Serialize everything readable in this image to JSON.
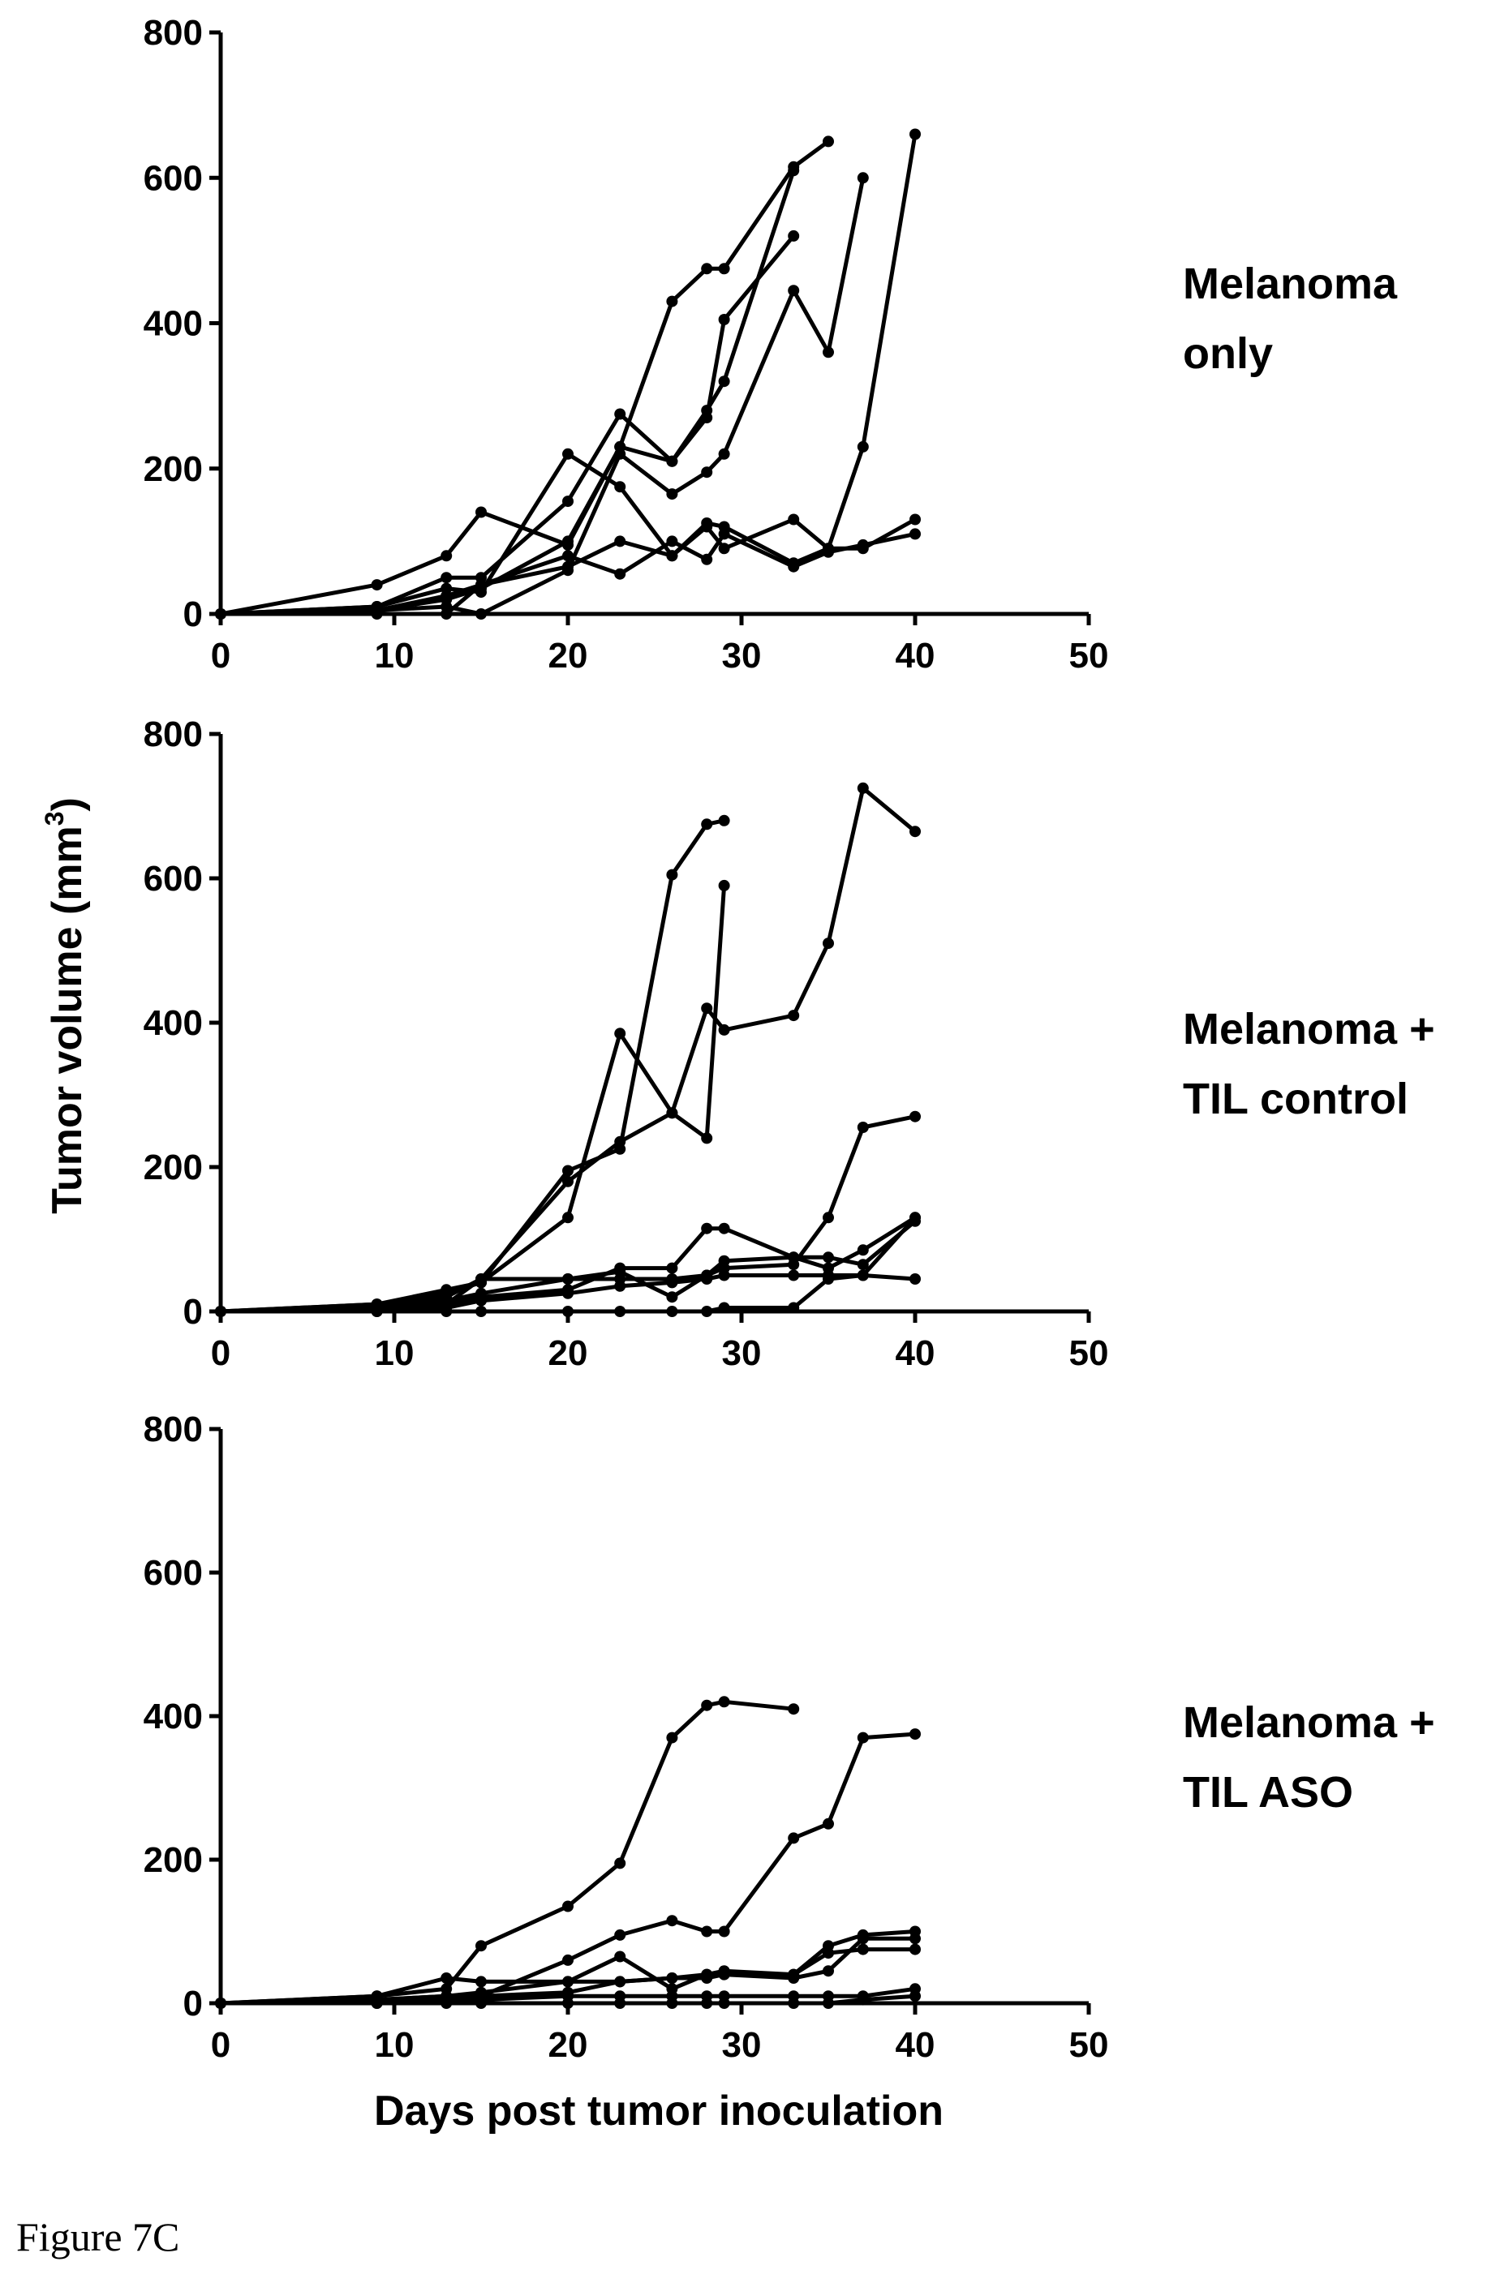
{
  "figure": {
    "caption": "Figure 7C",
    "ylabel_main": "Tumor volume (mm",
    "ylabel_sup": "3",
    "ylabel_close": ")",
    "xlabel": "Days post tumor inoculation"
  },
  "chart_data": [
    {
      "type": "line",
      "panel_label": [
        "Melanoma",
        "only"
      ],
      "xlim": [
        0,
        50
      ],
      "ylim": [
        0,
        800
      ],
      "x_ticks": [
        0,
        10,
        20,
        30,
        40,
        50
      ],
      "y_ticks": [
        0,
        200,
        400,
        600,
        800
      ],
      "grid": false,
      "series": [
        {
          "x": [
            0,
            9,
            13,
            15,
            20,
            23,
            26,
            28,
            29,
            33,
            35
          ],
          "y": [
            0,
            40,
            80,
            140,
            95,
            230,
            430,
            475,
            475,
            615,
            650
          ]
        },
        {
          "x": [
            0,
            9,
            13,
            15,
            20,
            23,
            26,
            28,
            29,
            33
          ],
          "y": [
            0,
            10,
            50,
            50,
            155,
            275,
            210,
            270,
            405,
            520
          ]
        },
        {
          "x": [
            0,
            9,
            13,
            15,
            20,
            23,
            26,
            28,
            29,
            33
          ],
          "y": [
            0,
            5,
            20,
            35,
            100,
            230,
            210,
            280,
            320,
            610
          ]
        },
        {
          "x": [
            0,
            9,
            13,
            15,
            20,
            23,
            26,
            28,
            29,
            33,
            35,
            37
          ],
          "y": [
            0,
            5,
            10,
            0,
            60,
            220,
            165,
            195,
            220,
            445,
            360,
            600
          ]
        },
        {
          "x": [
            0,
            9,
            13,
            15,
            20,
            23,
            26,
            28,
            29,
            33,
            35,
            37,
            40
          ],
          "y": [
            0,
            10,
            35,
            30,
            220,
            175,
            80,
            125,
            120,
            70,
            90,
            230,
            660
          ]
        },
        {
          "x": [
            0,
            9,
            13,
            15,
            20,
            23,
            26,
            28,
            29,
            33,
            35,
            37,
            40
          ],
          "y": [
            0,
            0,
            0,
            40,
            65,
            100,
            80,
            120,
            90,
            130,
            90,
            90,
            130
          ]
        },
        {
          "x": [
            0,
            9,
            13,
            15,
            20,
            23,
            26,
            28,
            29,
            33,
            35,
            37,
            40
          ],
          "y": [
            0,
            5,
            25,
            40,
            80,
            55,
            100,
            75,
            110,
            65,
            85,
            95,
            110
          ]
        }
      ]
    },
    {
      "type": "line",
      "panel_label": [
        "Melanoma +",
        "TIL control"
      ],
      "xlim": [
        0,
        50
      ],
      "ylim": [
        0,
        800
      ],
      "x_ticks": [
        0,
        10,
        20,
        30,
        40,
        50
      ],
      "y_ticks": [
        0,
        200,
        400,
        600,
        800
      ],
      "grid": false,
      "series": [
        {
          "x": [
            0,
            9,
            13,
            15,
            20,
            23,
            26,
            28,
            29
          ],
          "y": [
            0,
            10,
            30,
            40,
            195,
            225,
            605,
            675,
            680
          ]
        },
        {
          "x": [
            0,
            9,
            13,
            15,
            20,
            23,
            26,
            28,
            29
          ],
          "y": [
            0,
            10,
            25,
            40,
            130,
            385,
            275,
            240,
            590
          ]
        },
        {
          "x": [
            0,
            9,
            13,
            15,
            20,
            23,
            26,
            28,
            29,
            33,
            35,
            37,
            40
          ],
          "y": [
            0,
            5,
            20,
            45,
            180,
            235,
            275,
            420,
            390,
            410,
            510,
            725,
            665
          ]
        },
        {
          "x": [
            0,
            9,
            13,
            15,
            20,
            23,
            26,
            28,
            29,
            33,
            35,
            37,
            40
          ],
          "y": [
            0,
            5,
            15,
            25,
            45,
            55,
            20,
            50,
            60,
            65,
            130,
            255,
            270
          ]
        },
        {
          "x": [
            0,
            9,
            13,
            15,
            20,
            23,
            26,
            28,
            29,
            33,
            35,
            37,
            40
          ],
          "y": [
            0,
            5,
            10,
            20,
            30,
            60,
            60,
            115,
            115,
            75,
            75,
            65,
            125
          ]
        },
        {
          "x": [
            0,
            9,
            13,
            15,
            20,
            23,
            26,
            28,
            29,
            33,
            35,
            37,
            40
          ],
          "y": [
            0,
            5,
            10,
            45,
            45,
            45,
            45,
            50,
            70,
            75,
            60,
            85,
            130
          ]
        },
        {
          "x": [
            0,
            9,
            13,
            15,
            20,
            23,
            26,
            28,
            29,
            33,
            35,
            37,
            40
          ],
          "y": [
            0,
            0,
            5,
            15,
            25,
            35,
            40,
            45,
            50,
            50,
            50,
            50,
            45
          ]
        },
        {
          "x": [
            0,
            9,
            13,
            15,
            20,
            23,
            26,
            28,
            29,
            33,
            35,
            37,
            40
          ],
          "y": [
            0,
            0,
            0,
            0,
            0,
            0,
            0,
            0,
            5,
            5,
            45,
            50,
            130
          ]
        }
      ]
    },
    {
      "type": "line",
      "panel_label": [
        "Melanoma +",
        "TIL ASO"
      ],
      "xlim": [
        0,
        50
      ],
      "ylim": [
        0,
        800
      ],
      "x_ticks": [
        0,
        10,
        20,
        30,
        40,
        50
      ],
      "y_ticks": [
        0,
        200,
        400,
        600,
        800
      ],
      "grid": false,
      "series": [
        {
          "x": [
            0,
            9,
            13,
            15,
            20,
            23,
            26,
            28,
            29,
            33
          ],
          "y": [
            0,
            10,
            20,
            80,
            135,
            195,
            370,
            415,
            420,
            410
          ]
        },
        {
          "x": [
            0,
            9,
            13,
            15,
            20,
            23,
            26,
            28,
            29,
            33,
            35,
            37,
            40
          ],
          "y": [
            0,
            5,
            5,
            10,
            60,
            95,
            115,
            100,
            100,
            230,
            250,
            370,
            375
          ]
        },
        {
          "x": [
            0,
            9,
            13,
            15,
            20,
            23,
            26,
            28,
            29,
            33,
            35,
            37,
            40
          ],
          "y": [
            0,
            5,
            10,
            15,
            30,
            65,
            20,
            40,
            45,
            40,
            80,
            95,
            100
          ]
        },
        {
          "x": [
            0,
            9,
            13,
            15,
            20,
            23,
            26,
            28,
            29,
            33,
            35,
            37,
            40
          ],
          "y": [
            0,
            10,
            35,
            30,
            30,
            30,
            35,
            35,
            40,
            35,
            45,
            90,
            90
          ]
        },
        {
          "x": [
            0,
            9,
            13,
            15,
            20,
            23,
            26,
            28,
            29,
            33,
            35,
            37,
            40
          ],
          "y": [
            0,
            5,
            10,
            10,
            15,
            30,
            35,
            40,
            40,
            40,
            70,
            75,
            75
          ]
        },
        {
          "x": [
            0,
            9,
            13,
            15,
            20,
            23,
            26,
            28,
            29,
            33,
            35,
            37,
            40
          ],
          "y": [
            0,
            0,
            5,
            5,
            10,
            10,
            10,
            10,
            10,
            10,
            10,
            10,
            20
          ]
        },
        {
          "x": [
            0,
            9,
            13,
            15,
            20,
            23,
            26,
            28,
            29,
            33,
            35,
            37,
            40
          ],
          "y": [
            0,
            0,
            0,
            0,
            0,
            0,
            0,
            0,
            0,
            0,
            0,
            5,
            10
          ]
        }
      ]
    }
  ]
}
